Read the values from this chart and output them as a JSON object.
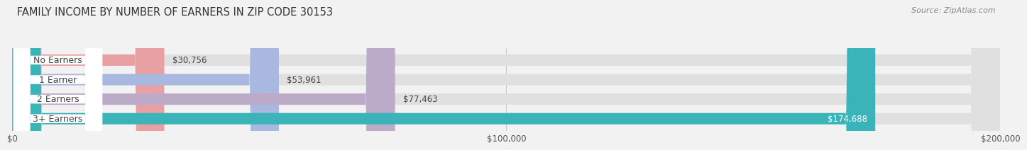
{
  "title": "FAMILY INCOME BY NUMBER OF EARNERS IN ZIP CODE 30153",
  "source": "Source: ZipAtlas.com",
  "categories": [
    "No Earners",
    "1 Earner",
    "2 Earners",
    "3+ Earners"
  ],
  "values": [
    30756,
    53961,
    77463,
    174688
  ],
  "bar_colors": [
    "#e8a0a2",
    "#a8b8e0",
    "#bbaac8",
    "#3ab4b8"
  ],
  "label_colors": [
    "#555555",
    "#555555",
    "#555555",
    "#ffffff"
  ],
  "value_labels": [
    "$30,756",
    "$53,961",
    "$77,463",
    "$174,688"
  ],
  "xlim": [
    0,
    200000
  ],
  "xticks": [
    0,
    100000,
    200000
  ],
  "xtick_labels": [
    "$0",
    "$100,000",
    "$200,000"
  ],
  "background_color": "#f2f2f2",
  "bar_bg_color": "#e0e0e0",
  "bar_height": 0.58,
  "title_fontsize": 10.5,
  "source_fontsize": 8,
  "label_fontsize": 9,
  "value_fontsize": 8.5,
  "tick_fontsize": 8.5
}
